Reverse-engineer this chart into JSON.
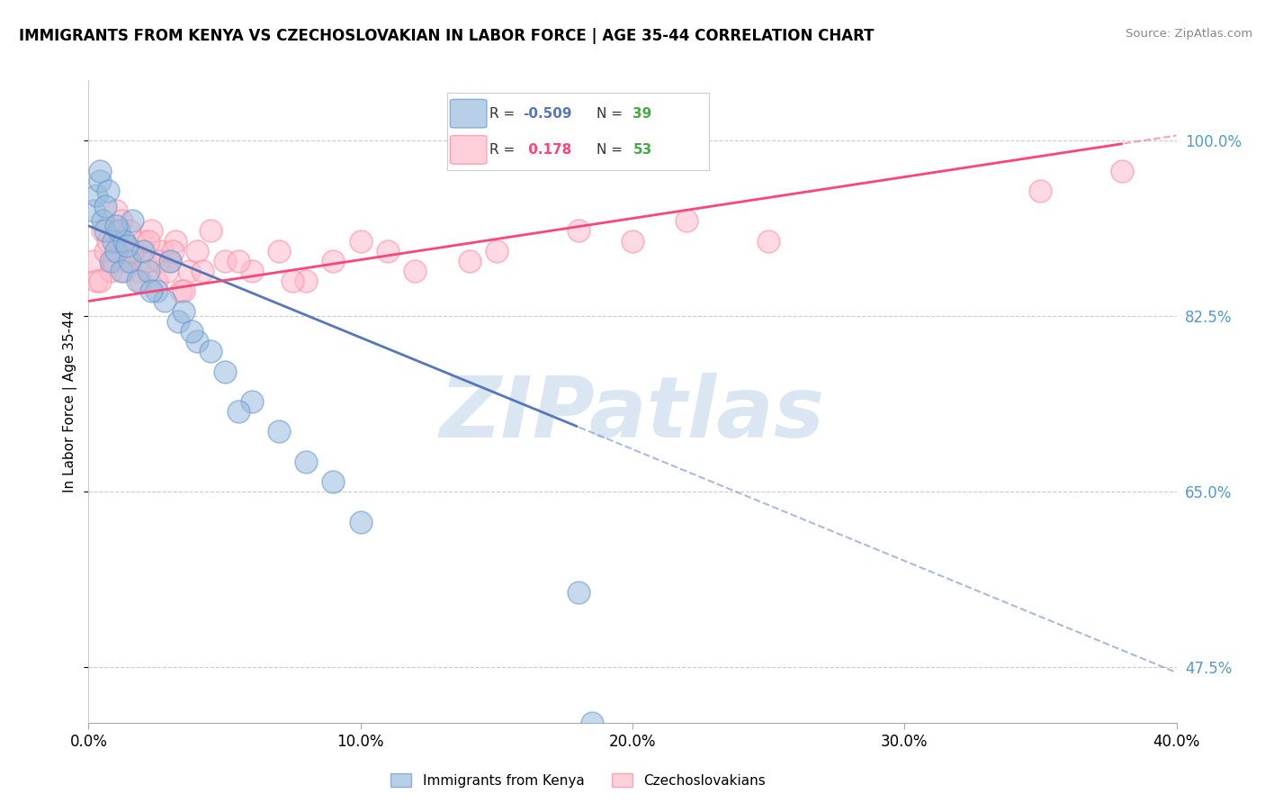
{
  "title": "IMMIGRANTS FROM KENYA VS CZECHOSLOVAKIAN IN LABOR FORCE | AGE 35-44 CORRELATION CHART",
  "source": "Source: ZipAtlas.com",
  "ylabel": "In Labor Force | Age 35-44",
  "xlim": [
    0.0,
    40.0
  ],
  "ylim": [
    42.0,
    106.0
  ],
  "ytick_vals": [
    47.5,
    65.0,
    82.5,
    100.0
  ],
  "ytick_labels": [
    "47.5%",
    "65.0%",
    "82.5%",
    "100.0%"
  ],
  "xtick_vals": [
    0.0,
    10.0,
    20.0,
    30.0,
    40.0
  ],
  "xtick_labels": [
    "0.0%",
    "10.0%",
    "20.0%",
    "30.0%",
    "40.0%"
  ],
  "kenya_R": -0.509,
  "kenya_N": 39,
  "czech_R": 0.178,
  "czech_N": 53,
  "kenya_color": "#99BBDD",
  "kenya_edge_color": "#6699CC",
  "czech_color": "#FFBBCC",
  "czech_edge_color": "#FF8899",
  "kenya_line_color": "#5577BB",
  "czech_line_color": "#FF4477",
  "kenya_line_x0": 0.0,
  "kenya_line_y0": 91.5,
  "kenya_line_x1": 40.0,
  "kenya_line_y1": 47.0,
  "kenya_solid_xmax": 18.0,
  "czech_line_x0": 0.0,
  "czech_line_y0": 84.0,
  "czech_line_x1": 40.0,
  "czech_line_y1": 100.5,
  "czech_solid_xmax": 38.0,
  "kenya_scatter_x": [
    0.2,
    0.3,
    0.4,
    0.5,
    0.6,
    0.7,
    0.8,
    0.9,
    1.0,
    1.1,
    1.2,
    1.3,
    1.5,
    1.6,
    1.8,
    2.0,
    2.2,
    2.5,
    2.8,
    3.0,
    3.3,
    3.5,
    4.0,
    4.5,
    5.0,
    6.0,
    7.0,
    8.0,
    9.0,
    10.0,
    3.8,
    0.4,
    0.6,
    1.0,
    1.4,
    2.3,
    5.5,
    18.0,
    18.5
  ],
  "kenya_scatter_y": [
    93.0,
    94.5,
    96.0,
    92.0,
    91.0,
    95.0,
    88.0,
    90.0,
    89.0,
    91.0,
    87.0,
    90.0,
    88.0,
    92.0,
    86.0,
    89.0,
    87.0,
    85.0,
    84.0,
    88.0,
    82.0,
    83.0,
    80.0,
    79.0,
    77.0,
    74.0,
    71.0,
    68.0,
    66.0,
    62.0,
    81.0,
    97.0,
    93.5,
    91.5,
    89.5,
    85.0,
    73.0,
    55.0,
    42.0
  ],
  "czech_scatter_x": [
    0.2,
    0.3,
    0.5,
    0.6,
    0.8,
    1.0,
    1.1,
    1.2,
    1.4,
    1.5,
    1.7,
    1.8,
    2.0,
    2.1,
    2.3,
    2.5,
    2.7,
    3.0,
    3.2,
    3.4,
    3.7,
    4.0,
    4.5,
    5.0,
    6.0,
    7.0,
    8.0,
    9.0,
    10.0,
    12.0,
    15.0,
    18.0,
    20.0,
    0.4,
    0.7,
    0.9,
    1.3,
    1.6,
    1.9,
    2.2,
    2.6,
    2.9,
    3.1,
    3.5,
    4.2,
    5.5,
    7.5,
    11.0,
    14.0,
    22.0,
    25.0,
    35.0,
    38.0
  ],
  "czech_scatter_y": [
    88.0,
    86.0,
    91.0,
    89.0,
    87.0,
    93.0,
    90.0,
    92.0,
    88.0,
    91.0,
    89.0,
    87.0,
    90.0,
    88.0,
    91.0,
    86.0,
    89.0,
    88.0,
    90.0,
    85.0,
    87.0,
    89.0,
    91.0,
    88.0,
    87.0,
    89.0,
    86.0,
    88.0,
    90.0,
    87.0,
    89.0,
    91.0,
    90.0,
    86.0,
    90.0,
    88.0,
    87.0,
    89.0,
    86.0,
    90.0,
    88.0,
    87.0,
    89.0,
    85.0,
    87.0,
    88.0,
    86.0,
    89.0,
    88.0,
    92.0,
    90.0,
    95.0,
    97.0
  ],
  "watermark": "ZIPatlas",
  "bg_color": "#FFFFFF",
  "grid_color": "#CCCCCC"
}
